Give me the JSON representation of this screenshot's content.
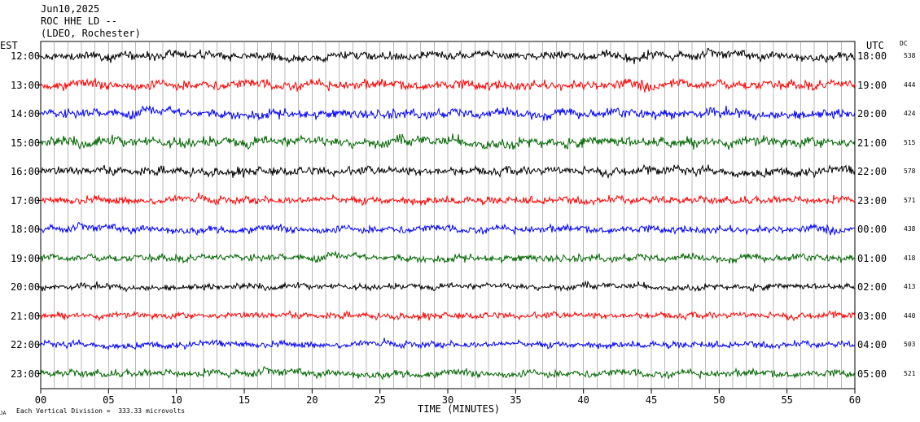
{
  "header": {
    "date": "Jun10,2025",
    "station": "ROC HHE LD --",
    "network": "(LDEO, Rochester)"
  },
  "left_axis_label": "EST",
  "right_axis_label": "UTC",
  "dc_label": "DC",
  "footer": {
    "corner_mark": "JA",
    "scale_note": "Each Vertical Division =  333.33 microvolts"
  },
  "chart_data": {
    "type": "line",
    "title": "",
    "xlabel": "TIME (MINUTES)",
    "xlim": [
      0,
      60
    ],
    "x_ticks": [
      "00",
      "05",
      "10",
      "15",
      "20",
      "25",
      "30",
      "35",
      "40",
      "45",
      "50",
      "55",
      "60"
    ],
    "grid": "vertical lines every minute",
    "trace_colors": [
      "#000000",
      "#ff0000",
      "#0000ff",
      "#006600"
    ],
    "rows": [
      {
        "est": "12:00",
        "utc": "18:00",
        "dc": "538"
      },
      {
        "est": "13:00",
        "utc": "19:00",
        "dc": "444"
      },
      {
        "est": "14:00",
        "utc": "20:00",
        "dc": "424"
      },
      {
        "est": "15:00",
        "utc": "21:00",
        "dc": "515"
      },
      {
        "est": "16:00",
        "utc": "22:00",
        "dc": "578"
      },
      {
        "est": "17:00",
        "utc": "23:00",
        "dc": "571"
      },
      {
        "est": "18:00",
        "utc": "00:00",
        "dc": "438"
      },
      {
        "est": "19:00",
        "utc": "01:00",
        "dc": "418"
      },
      {
        "est": "20:00",
        "utc": "02:00",
        "dc": "413"
      },
      {
        "est": "21:00",
        "utc": "03:00",
        "dc": "440"
      },
      {
        "est": "22:00",
        "utc": "04:00",
        "dc": "503"
      },
      {
        "est": "23:00",
        "utc": "05:00",
        "dc": "521"
      }
    ]
  }
}
